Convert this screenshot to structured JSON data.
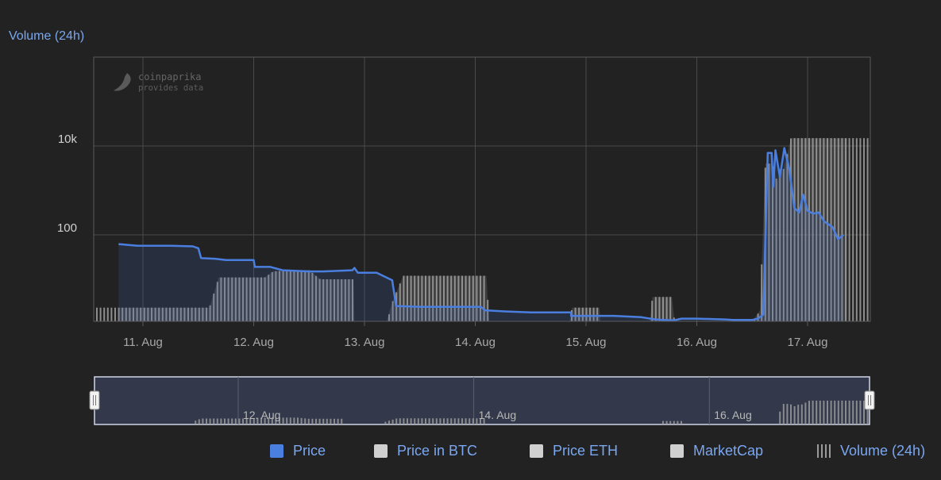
{
  "chart_data": {
    "type": "line",
    "title": "Volume (24h)",
    "y_scale": "log",
    "ylim": [
      1,
      1000000
    ],
    "y_ticks": [
      {
        "value": 100,
        "label": "100"
      },
      {
        "value": 10000,
        "label": "10k"
      }
    ],
    "x_ticks": [
      "11. Aug",
      "12. Aug",
      "13. Aug",
      "14. Aug",
      "15. Aug",
      "16. Aug",
      "17. Aug"
    ],
    "navigator_ticks": [
      "12. Aug",
      "14. Aug",
      "16. Aug"
    ],
    "watermark": {
      "line1": "coinpaprika",
      "line2": "provides data"
    },
    "series": [
      {
        "name": "Price",
        "color": "#4a7fe0",
        "points": [
          [
            -0.44,
            62
          ],
          [
            -0.1,
            57
          ],
          [
            0.2,
            57
          ],
          [
            0.5,
            57
          ],
          [
            0.9,
            55
          ],
          [
            1.0,
            50
          ],
          [
            1.05,
            30
          ],
          [
            1.3,
            29
          ],
          [
            1.5,
            27
          ],
          [
            2.0,
            27
          ],
          [
            2.02,
            19
          ],
          [
            2.3,
            19
          ],
          [
            2.52,
            16
          ],
          [
            3.0,
            15
          ],
          [
            3.25,
            15
          ],
          [
            3.78,
            16
          ],
          [
            3.82,
            18
          ],
          [
            3.88,
            14
          ],
          [
            4.22,
            14
          ],
          [
            4.5,
            9.5
          ],
          [
            4.57,
            2.5
          ],
          [
            5.0,
            2.4
          ],
          [
            5.5,
            2.4
          ],
          [
            6.1,
            2.4
          ],
          [
            6.18,
            2.0
          ],
          [
            6.5,
            1.9
          ],
          [
            7.0,
            1.8
          ],
          [
            7.4,
            1.8
          ],
          [
            7.73,
            1.8
          ],
          [
            7.73,
            1.5
          ],
          [
            8.0,
            1.5
          ],
          [
            8.5,
            1.5
          ],
          [
            9.0,
            1.4
          ],
          [
            9.25,
            1.25
          ],
          [
            9.5,
            1.2
          ],
          [
            9.6,
            1.2
          ],
          [
            9.72,
            1.3
          ],
          [
            10.0,
            1.3
          ],
          [
            10.5,
            1.25
          ],
          [
            10.65,
            1.22
          ],
          [
            11.0,
            1.22
          ],
          [
            11.1,
            1.3
          ],
          [
            11.2,
            1.6
          ],
          [
            11.28,
            7000
          ],
          [
            11.35,
            7000
          ],
          [
            11.38,
            1200
          ],
          [
            11.42,
            8000
          ],
          [
            11.5,
            2000
          ],
          [
            11.58,
            9000
          ],
          [
            11.67,
            3000
          ],
          [
            11.76,
            400
          ],
          [
            11.85,
            320
          ],
          [
            11.92,
            800
          ],
          [
            12.0,
            350
          ],
          [
            12.1,
            300
          ],
          [
            12.2,
            320
          ],
          [
            12.3,
            200
          ],
          [
            12.45,
            150
          ],
          [
            12.55,
            80
          ],
          [
            12.65,
            100
          ]
        ],
        "values": [
          62,
          57,
          57,
          57,
          55,
          50,
          30,
          29,
          27,
          27,
          19,
          19,
          16,
          15,
          15,
          16,
          18,
          14,
          14,
          9.5,
          2.5,
          2.4,
          2.4,
          2.4,
          2.0,
          1.9,
          1.8,
          1.8,
          1.8,
          1.5,
          1.5,
          1.5,
          1.4,
          1.25,
          1.2,
          1.2,
          1.3,
          1.3,
          1.25,
          1.22,
          1.22,
          1.3,
          1.6,
          7000,
          7000,
          1200,
          8000,
          2000,
          9000,
          3000,
          400,
          320,
          800,
          350,
          300,
          320,
          200,
          150,
          80,
          100
        ]
      },
      {
        "name": "Price in BTC",
        "color": "#d0d0d0",
        "values": []
      },
      {
        "name": "Price ETH",
        "color": "#d0d0d0",
        "values": []
      },
      {
        "name": "MarketCap",
        "color": "#d0d0d0",
        "values": []
      },
      {
        "name": "Volume (24h)",
        "color": "#8a8a8a",
        "points": [
          [
            -0.44,
            2.3
          ],
          [
            1.2,
            2.3
          ],
          [
            1.37,
            11
          ],
          [
            2.2,
            11
          ],
          [
            2.35,
            15
          ],
          [
            2.6,
            16
          ],
          [
            3.0,
            16
          ],
          [
            3.2,
            10
          ],
          [
            3.6,
            10
          ],
          [
            3.8,
            10
          ],
          [
            3.82,
            1
          ],
          [
            3.84,
            1
          ],
          [
            4.4,
            1
          ],
          [
            4.5,
            3
          ],
          [
            4.6,
            6
          ],
          [
            4.7,
            12
          ],
          [
            5.6,
            12
          ],
          [
            5.7,
            12
          ],
          [
            6.0,
            12
          ],
          [
            6.2,
            12
          ],
          [
            6.25,
            1
          ],
          [
            6.8,
            1
          ],
          [
            7.4,
            1
          ],
          [
            7.7,
            1
          ],
          [
            7.75,
            2.3
          ],
          [
            8.24,
            2.3
          ],
          [
            8.26,
            1
          ],
          [
            9.15,
            1
          ],
          [
            9.2,
            4
          ],
          [
            9.55,
            4
          ],
          [
            9.6,
            1
          ],
          [
            10.9,
            1
          ],
          [
            11.0,
            1
          ],
          [
            11.14,
            2
          ],
          [
            11.24,
            4000
          ],
          [
            11.34,
            4000
          ],
          [
            11.4,
            3000
          ],
          [
            11.45,
            1500
          ],
          [
            11.5,
            3000
          ],
          [
            11.55,
            2500
          ],
          [
            11.65,
            8000
          ],
          [
            11.7,
            15000
          ],
          [
            11.8,
            15000
          ],
          [
            12.2,
            15000
          ],
          [
            12.72,
            15000
          ]
        ]
      }
    ]
  }
}
